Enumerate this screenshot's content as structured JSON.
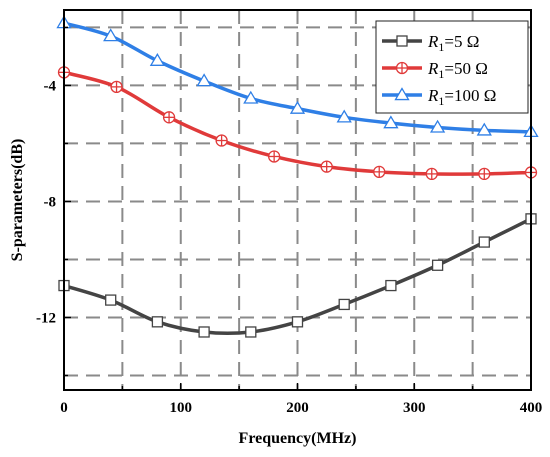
{
  "chart_data": {
    "type": "line",
    "title": "",
    "xlabel": "Frequency(MHz)",
    "ylabel": "S-parameters(dB)",
    "xlim": [
      0,
      400
    ],
    "ylim": [
      -14.5,
      -1.4
    ],
    "x_ticks": [
      0,
      100,
      200,
      300,
      400
    ],
    "y_ticks": [
      -4,
      -8,
      -12
    ],
    "x_tick_labels": [
      "0",
      "100",
      "200",
      "300",
      "400"
    ],
    "y_tick_labels": [
      "-4",
      "-8",
      "-12"
    ],
    "grid": true,
    "legend_position": "top-right",
    "series": [
      {
        "name_prefix": "R",
        "name_sub": "1",
        "name_suffix": "=5 Ω",
        "color": "#444444",
        "marker": "square",
        "x": [
          0,
          40,
          80,
          120,
          160,
          200,
          240,
          280,
          320,
          360,
          400
        ],
        "y": [
          -10.9,
          -11.4,
          -12.15,
          -12.5,
          -12.5,
          -12.15,
          -11.55,
          -10.9,
          -10.2,
          -9.4,
          -8.6
        ]
      },
      {
        "name_prefix": "R",
        "name_sub": "1",
        "name_suffix": "=50 Ω",
        "color": "#e03a3a",
        "marker": "circle-plus",
        "x": [
          0,
          45,
          90,
          135,
          180,
          225,
          270,
          315,
          360,
          400
        ],
        "y": [
          -3.55,
          -4.05,
          -5.1,
          -5.9,
          -6.45,
          -6.8,
          -6.98,
          -7.05,
          -7.05,
          -7.0
        ],
        "y_at_0": -3.55
      },
      {
        "name_prefix": "R",
        "name_sub": "1",
        "name_suffix": "=100 Ω",
        "color": "#2f7fe6",
        "marker": "triangle",
        "x": [
          0,
          40,
          80,
          120,
          160,
          200,
          240,
          280,
          320,
          360,
          400
        ],
        "y": [
          -1.85,
          -2.3,
          -3.15,
          -3.85,
          -4.45,
          -4.8,
          -5.1,
          -5.3,
          -5.45,
          -5.55,
          -5.6
        ]
      }
    ]
  }
}
